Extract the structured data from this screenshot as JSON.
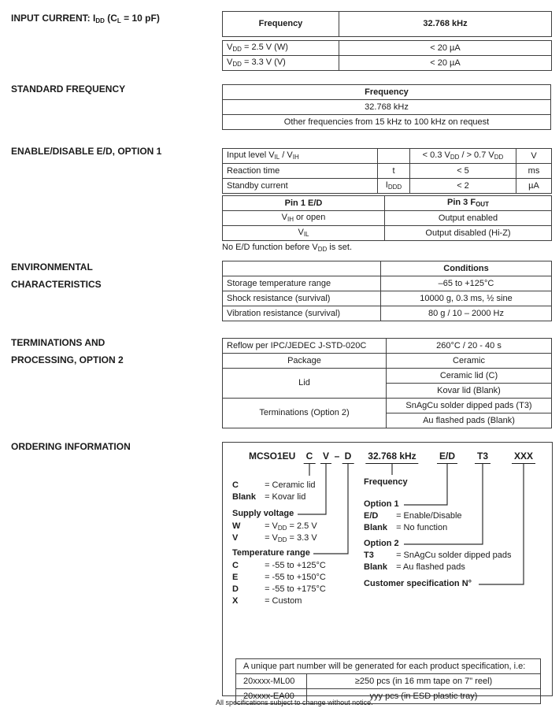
{
  "sections": {
    "input_current": {
      "heading": "INPUT CURRENT: I~DD~ (C~L~ = 10 pF)",
      "header": [
        "Frequency",
        "32.768 kHz"
      ],
      "rows": [
        [
          "V~DD~ = 2.5 V (W)",
          "< 20 µA"
        ],
        [
          "V~DD~ = 3.3 V (V)",
          "< 20 µA"
        ]
      ]
    },
    "standard_frequency": {
      "heading": "STANDARD FREQUENCY",
      "header": "Frequency",
      "rows": [
        "32.768 kHz",
        "Other frequencies from 15 kHz to 100 kHz on request"
      ]
    },
    "enable_disable": {
      "heading": "ENABLE/DISABLE E/D, OPTION 1",
      "spec_rows": [
        {
          "param": "Input level V~IL~ / V~IH~",
          "symbol": "",
          "value": "< 0.3 V~DD~ / > 0.7 V~DD~",
          "unit": "V"
        },
        {
          "param": "Reaction time",
          "symbol": "t",
          "value": "< 5",
          "unit": "ms"
        },
        {
          "param": "Standby current",
          "symbol": "I~DDD~",
          "value": "< 2",
          "unit": "µA"
        }
      ],
      "pin_table": {
        "header": [
          "Pin 1 E/D",
          "Pin 3 F~OUT~"
        ],
        "rows": [
          [
            "V~IH~ or open",
            "Output enabled"
          ],
          [
            "V~IL~",
            "Output disabled (Hi-Z)"
          ]
        ]
      },
      "note": "No E/D function before V~DD~ is set."
    },
    "environmental": {
      "heading_line1": "ENVIRONMENTAL",
      "heading_line2": "CHARACTERISTICS",
      "header": "Conditions",
      "rows": [
        [
          "Storage temperature range",
          "–65 to +125°C"
        ],
        [
          "Shock resistance (survival)",
          "10000 g, 0.3 ms, ½ sine"
        ],
        [
          "Vibration resistance (survival)",
          "80 g / 10 – 2000 Hz"
        ]
      ]
    },
    "terminations": {
      "heading_line1": "TERMINATIONS AND",
      "heading_line2": "PROCESSING, OPTION 2",
      "reflow_label": "Reflow per IPC/JEDEC J-STD-020C",
      "reflow_value": "260°C / 20 - 40 s",
      "package_label": "Package",
      "package_value": "Ceramic",
      "lid_label": "Lid",
      "lid_option1": "Ceramic lid (C)",
      "lid_option2": "Kovar lid (Blank)",
      "term_label": "Terminations (Option 2)",
      "term_option1": "SnAgCu solder dipped pads (T3)",
      "term_option2": "Au flashed pads (Blank)"
    },
    "ordering": {
      "heading": "ORDERING INFORMATION",
      "part_number": {
        "prefix": "MCSO1EU",
        "lid": "C",
        "supply": "V",
        "dash": "–",
        "temp": "D",
        "frequency": "32.768 kHz",
        "option1": "E/D",
        "option2": "T3",
        "custom": "XXX"
      },
      "legend": {
        "lid": {
          "rows": [
            {
              "k": "C",
              "v": "= Ceramic lid"
            },
            {
              "k": "Blank",
              "v": "= Kovar lid"
            }
          ]
        },
        "supply": {
          "title": "Supply voltage",
          "rows": [
            {
              "k": "W",
              "v": "= V~DD~ = 2.5 V"
            },
            {
              "k": "V",
              "v": "= V~DD~ = 3.3 V"
            }
          ]
        },
        "temp": {
          "title": "Temperature range",
          "rows": [
            {
              "k": "C",
              "v": "= -55 to +125°C"
            },
            {
              "k": "E",
              "v": "= -55 to +150°C"
            },
            {
              "k": "D",
              "v": "= -55 to +175°C"
            },
            {
              "k": "X",
              "v": "= Custom"
            }
          ]
        },
        "frequency_title": "Frequency",
        "option1": {
          "title": "Option 1",
          "rows": [
            {
              "k": "E/D",
              "v": "= Enable/Disable"
            },
            {
              "k": "Blank",
              "v": "= No function"
            }
          ]
        },
        "option2": {
          "title": "Option 2",
          "rows": [
            {
              "k": "T3",
              "v": "= SnAgCu solder dipped pads"
            },
            {
              "k": "Blank",
              "v": "= Au flashed pads"
            }
          ]
        },
        "customer_title": "Customer specification N°"
      },
      "part_table": {
        "header": "A unique part number will be generated for each product specification, i.e:",
        "rows": [
          [
            "20xxxx-ML00",
            "≥250 pcs  (in 16 mm tape on 7\" reel)"
          ],
          [
            "20xxxx-EA00",
            "yyy pcs  (in ESD plastic tray)"
          ]
        ]
      }
    }
  },
  "footer": "All specifications subject to change without notice."
}
